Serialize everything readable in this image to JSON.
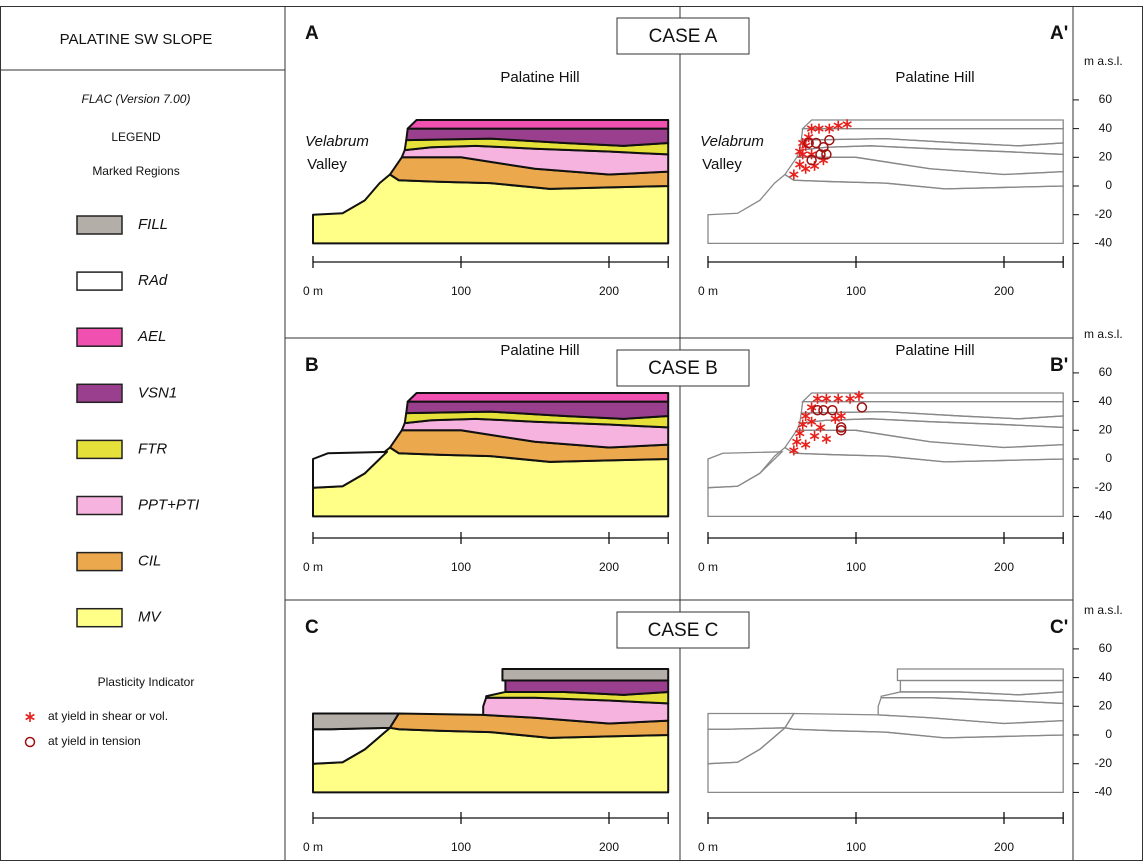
{
  "sidebar": {
    "title": "PALATINE SW SLOPE",
    "software": "FLAC (Version 7.00)",
    "legend_title": "LEGEND",
    "regions_title": "Marked Regions",
    "regions": [
      {
        "label": "FILL",
        "color": "#b3aea8"
      },
      {
        "label": "RAd",
        "color": "#ffffff"
      },
      {
        "label": "AEL",
        "color": "#f050b0"
      },
      {
        "label": "VSN1",
        "color": "#9a3f8e"
      },
      {
        "label": "FTR",
        "color": "#e6e03a"
      },
      {
        "label": "PPT+PTI",
        "color": "#f7b3e0"
      },
      {
        "label": "CIL",
        "color": "#eba84c"
      },
      {
        "label": "MV",
        "color": "#ffff88"
      }
    ],
    "plasticity_title": "Plasticity Indicator",
    "indicators": [
      {
        "label": "at yield in shear or vol.",
        "color": "#e8201c"
      },
      {
        "label": "at yield in tension",
        "color": "#a01010"
      }
    ]
  },
  "cases": [
    {
      "title": "CASE A",
      "left_label": "A",
      "right_label": "A'"
    },
    {
      "title": "CASE B",
      "left_label": "B",
      "right_label": "B'"
    },
    {
      "title": "CASE C",
      "left_label": "C",
      "right_label": "C'"
    }
  ],
  "annotations": {
    "hill": "Palatine Hill",
    "valley_name": "Velabrum",
    "valley": "Valley"
  },
  "x_axis": {
    "ticks": [
      {
        "value": 0,
        "label": "0 m"
      },
      100,
      200
    ]
  },
  "elevation_axis": {
    "label": "m a.s.l.",
    "ticks": [
      60,
      40,
      20,
      0,
      -20,
      -40
    ]
  }
}
